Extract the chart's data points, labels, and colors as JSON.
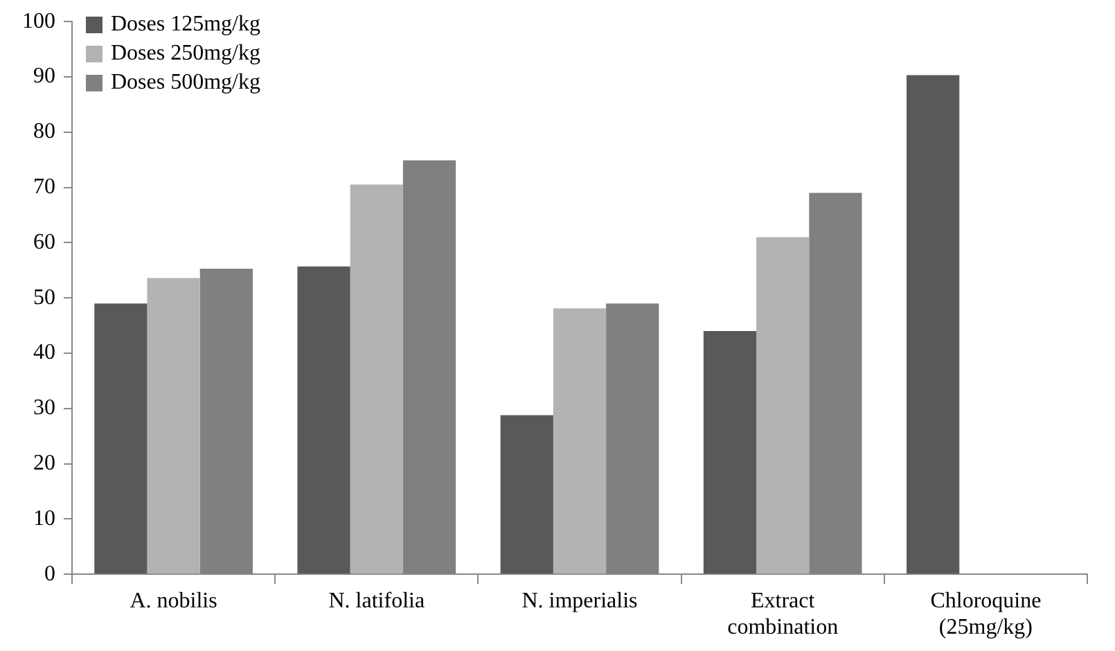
{
  "chart_data": {
    "type": "bar",
    "categories": [
      "A. nobilis",
      "N. latifolia",
      "N. imperialis",
      "Extract combination",
      "Chloroquine (25mg/kg)"
    ],
    "series": [
      {
        "name": "Doses 125mg/kg",
        "color": "#595959",
        "values": [
          49,
          55.7,
          28.8,
          44,
          90.3
        ]
      },
      {
        "name": "Doses 250mg/kg",
        "color": "#b3b3b3",
        "values": [
          53.6,
          70.5,
          48.1,
          61,
          null
        ]
      },
      {
        "name": "Doses 500mg/kg",
        "color": "#808080",
        "values": [
          55.3,
          74.9,
          49,
          69,
          null
        ]
      }
    ],
    "ylim": [
      0,
      100
    ],
    "yticks": [
      0,
      10,
      20,
      30,
      40,
      50,
      60,
      70,
      80,
      90,
      100
    ],
    "legend": "top left"
  }
}
